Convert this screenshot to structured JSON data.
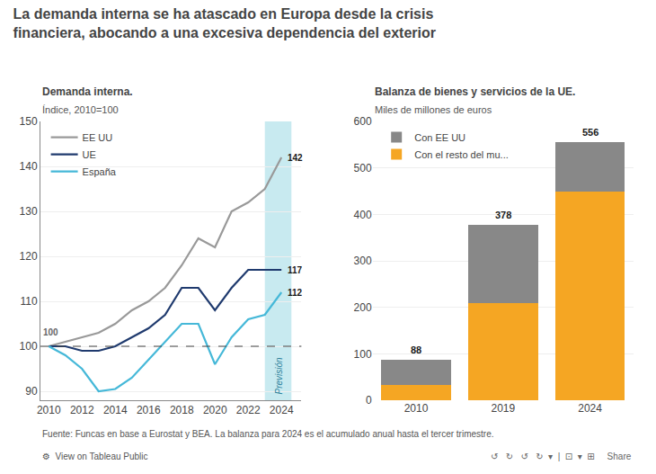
{
  "title": "La demanda interna se ha atascado en Europa desde la crisis\nfinanciera, abocando a una excesiva dependencia del exterior",
  "annotations": [
    "Fuente: Funcas en base a Eurostat y BEA. La balanza para 2024 es el acumulado anual hasta el tercer trimestre.",
    "⚙  View on Tableau Public",
    "↺   ↻   ↺   ↻  ▾  |  ⊡  ▾  ⊞     Share"
  ],
  "chart_data": [
    {
      "type": "line",
      "title": "Demanda interna.",
      "subtitle": "Índice, 2010=100",
      "x": [
        2010,
        2011,
        2012,
        2013,
        2014,
        2015,
        2016,
        2017,
        2018,
        2019,
        2020,
        2021,
        2022,
        2023,
        2024
      ],
      "series": [
        {
          "name": "EE UU",
          "color": "#999999",
          "values": [
            100,
            101,
            102,
            103,
            105,
            108,
            110,
            113,
            118,
            124,
            122,
            130,
            132,
            135,
            142
          ]
        },
        {
          "name": "UE",
          "color": "#1f3a6e",
          "values": [
            100,
            100,
            99,
            99,
            100,
            102,
            104,
            107,
            113,
            113,
            108,
            113,
            117,
            117,
            117
          ]
        },
        {
          "name": "España",
          "color": "#45b8d8",
          "values": [
            100,
            98,
            95,
            90,
            90.5,
            93,
            97,
            101,
            105,
            105,
            96,
            102,
            106,
            107,
            112
          ]
        }
      ],
      "xlim": [
        2009.5,
        2025.2
      ],
      "xticks": [
        2010,
        2012,
        2014,
        2016,
        2018,
        2020,
        2022,
        2024
      ],
      "ylim": [
        88,
        150
      ],
      "yticks": [
        90,
        100,
        110,
        120,
        130,
        140,
        150
      ],
      "grid": "y",
      "legend": "upper left",
      "reference_lines": [
        {
          "y": 100,
          "label": "100",
          "line_style": "dashed"
        }
      ],
      "regions": [
        {
          "x": [
            2023,
            2024.6
          ],
          "label": "Previsión",
          "color": "#c8eaf0"
        }
      ],
      "annotations": [
        {
          "x": 2024,
          "y": 142,
          "text": "142"
        },
        {
          "x": 2024,
          "y": 117,
          "text": "117"
        },
        {
          "x": 2024,
          "y": 112,
          "text": "112"
        }
      ]
    },
    {
      "type": "bar",
      "stacked": true,
      "title": "Balanza de bienes y servicios de la UE.",
      "subtitle": "Miles de millones de euros",
      "categories": [
        "2010",
        "2019",
        "2024"
      ],
      "series": [
        {
          "name": "Con el resto del mu...",
          "color": "#f5a623",
          "values": [
            33,
            209,
            449
          ]
        },
        {
          "name": "Con EE UU",
          "color": "#888888",
          "values": [
            55,
            169,
            107
          ]
        }
      ],
      "totals": [
        88,
        378,
        556
      ],
      "ylim": [
        0,
        600
      ],
      "yticks": [
        0,
        100,
        200,
        300,
        400,
        500,
        600
      ],
      "grid": "y",
      "legend": "upper left"
    }
  ]
}
